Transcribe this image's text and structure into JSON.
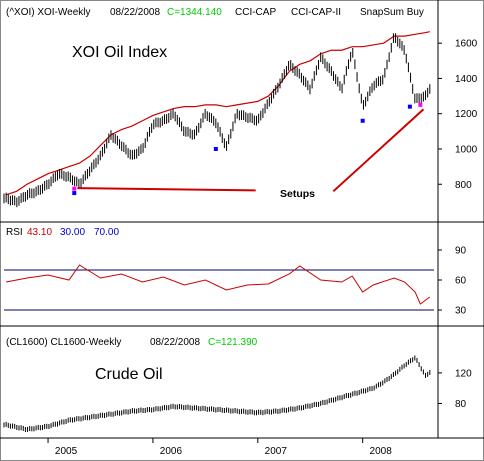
{
  "colors": {
    "price": "#000000",
    "envelope": "#cc0000",
    "rsi_line": "#cc0000",
    "rsi_overbought": "#cc00cc",
    "rsi_band": "#000066",
    "signal_blue": "#0000ff",
    "signal_magenta": "#ff00ff",
    "setup_line": "#cc0000",
    "up_value": "#00cc00",
    "frame": "#000000",
    "grid": "#cccccc"
  },
  "header_top": {
    "ticker": "(^XOI) XOI-Weekly",
    "date": "08/22/2008",
    "close": "C=1344.140",
    "ind1": "CCI-CAP",
    "ind2": "CCI-CAP-II",
    "ind3": "SnapSum Buy"
  },
  "header_rsi": {
    "label": "RSI",
    "value": "43.10",
    "low": "30.00",
    "high": "70.00"
  },
  "header_bottom": {
    "ticker": "(CL1600) CL1600-Weekly",
    "date": "08/22/2008",
    "close": "C=121.390"
  },
  "chart_data": [
    {
      "type": "line",
      "title": "XOI Oil Index",
      "annotation": "Setups",
      "x": [
        2004.6,
        2004.7,
        2004.8,
        2004.9,
        2005.0,
        2005.1,
        2005.2,
        2005.3,
        2005.4,
        2005.5,
        2005.6,
        2005.7,
        2005.8,
        2005.9,
        2006.0,
        2006.1,
        2006.2,
        2006.3,
        2006.4,
        2006.5,
        2006.6,
        2006.7,
        2006.8,
        2006.9,
        2007.0,
        2007.1,
        2007.2,
        2007.3,
        2007.4,
        2007.5,
        2007.6,
        2007.7,
        2007.8,
        2007.9,
        2008.0,
        2008.1,
        2008.2,
        2008.3,
        2008.4,
        2008.5,
        2008.6,
        2008.64
      ],
      "series": [
        {
          "values": [
            720,
            700,
            740,
            760,
            800,
            860,
            840,
            800,
            880,
            960,
            1080,
            1020,
            960,
            1000,
            1140,
            1160,
            1200,
            1100,
            1080,
            1200,
            1150,
            1010,
            1200,
            1180,
            1160,
            1260,
            1360,
            1480,
            1420,
            1340,
            1520,
            1440,
            1340,
            1560,
            1240,
            1360,
            1400,
            1640,
            1560,
            1280,
            1300,
            1344
          ]
        }
      ],
      "envelope": [
        740,
        760,
        800,
        830,
        860,
        880,
        900,
        920,
        960,
        1020,
        1080,
        1110,
        1130,
        1160,
        1190,
        1210,
        1230,
        1240,
        1240,
        1250,
        1250,
        1240,
        1250,
        1260,
        1270,
        1300,
        1360,
        1440,
        1480,
        1500,
        1540,
        1560,
        1560,
        1580,
        1580,
        1590,
        1600,
        1640,
        1640,
        1650,
        1660,
        1665
      ],
      "signals_blue": [
        {
          "x": 2005.25,
          "y": 750
        },
        {
          "x": 2006.6,
          "y": 1000
        },
        {
          "x": 2008.0,
          "y": 1160
        },
        {
          "x": 2008.45,
          "y": 1240
        }
      ],
      "signals_magenta": [
        {
          "x": 2005.25,
          "y": 775
        },
        {
          "x": 2008.55,
          "y": 1250
        }
      ],
      "ylim": [
        620,
        1720
      ],
      "yticks": [
        800,
        1000,
        1200,
        1400,
        1600
      ]
    },
    {
      "type": "line",
      "title": "RSI",
      "x": [
        2004.6,
        2004.8,
        2005.0,
        2005.2,
        2005.3,
        2005.5,
        2005.7,
        2005.9,
        2006.1,
        2006.3,
        2006.5,
        2006.7,
        2006.9,
        2007.1,
        2007.3,
        2007.4,
        2007.6,
        2007.8,
        2007.9,
        2008.0,
        2008.1,
        2008.3,
        2008.4,
        2008.5,
        2008.55,
        2008.64
      ],
      "series": [
        {
          "values": [
            58,
            62,
            65,
            60,
            75,
            62,
            66,
            58,
            63,
            55,
            60,
            50,
            55,
            56,
            66,
            74,
            60,
            58,
            64,
            48,
            55,
            62,
            58,
            48,
            36,
            43
          ]
        }
      ],
      "bands": [
        30,
        70
      ],
      "ylim": [
        20,
        100
      ],
      "yticks": [
        30,
        60,
        90
      ]
    },
    {
      "type": "line",
      "title": "Crude Oil",
      "x": [
        2004.6,
        2004.8,
        2005.0,
        2005.2,
        2005.4,
        2005.6,
        2005.8,
        2006.0,
        2006.2,
        2006.4,
        2006.6,
        2006.8,
        2007.0,
        2007.2,
        2007.4,
        2007.6,
        2007.8,
        2007.9,
        2008.0,
        2008.1,
        2008.2,
        2008.3,
        2008.4,
        2008.5,
        2008.6,
        2008.64
      ],
      "series": [
        {
          "values": [
            52,
            46,
            50,
            58,
            62,
            66,
            70,
            72,
            76,
            74,
            72,
            70,
            68,
            70,
            74,
            80,
            88,
            92,
            96,
            100,
            108,
            118,
            130,
            140,
            116,
            121
          ]
        }
      ],
      "ylim": [
        40,
        150
      ],
      "yticks": [
        80,
        120
      ]
    }
  ],
  "x_axis": {
    "xlim": [
      2004.58,
      2008.68
    ],
    "labels": [
      {
        "x": 2005.0,
        "label": "2005"
      },
      {
        "x": 2006.0,
        "label": "2006"
      },
      {
        "x": 2007.0,
        "label": "2007"
      },
      {
        "x": 2008.0,
        "label": "2008"
      }
    ]
  }
}
